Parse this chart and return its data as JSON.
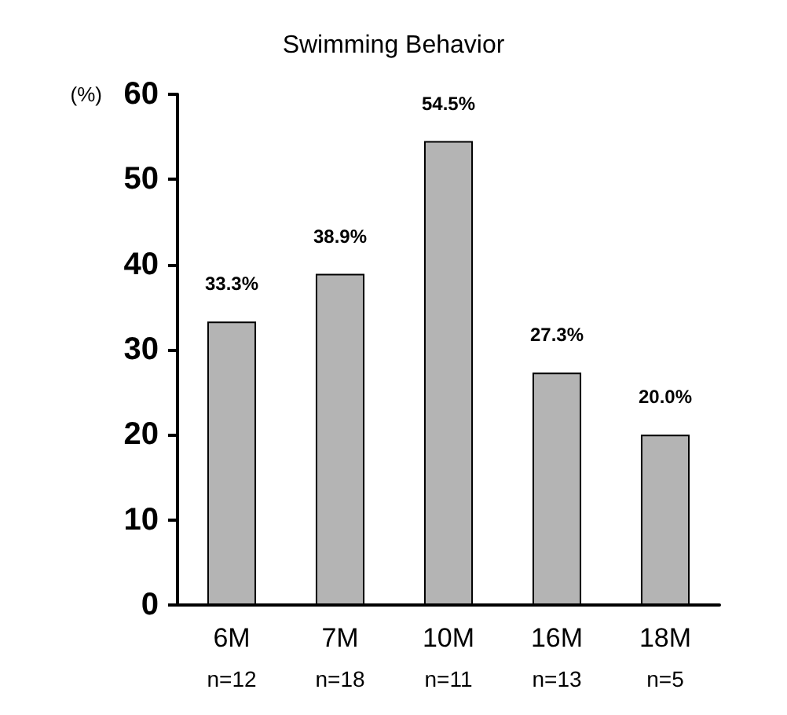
{
  "chart_data": {
    "type": "bar",
    "title": "Swimming Behavior",
    "ylabel": "(%)",
    "categories": [
      "6M\nn=12",
      "7M\nn=18",
      "10M\nn=11",
      "16M\nn=13",
      "18M\nn=5"
    ],
    "values": [
      33.3,
      38.9,
      54.5,
      27.3,
      20.0
    ],
    "value_labels": [
      "33.3%",
      "38.9%",
      "54.5%",
      "27.3%",
      "20.0%"
    ],
    "color": "#b4b4b4",
    "ylim": [
      0,
      60
    ],
    "yticks": [
      0,
      10,
      20,
      30,
      40,
      50,
      60
    ],
    "grid": false
  }
}
